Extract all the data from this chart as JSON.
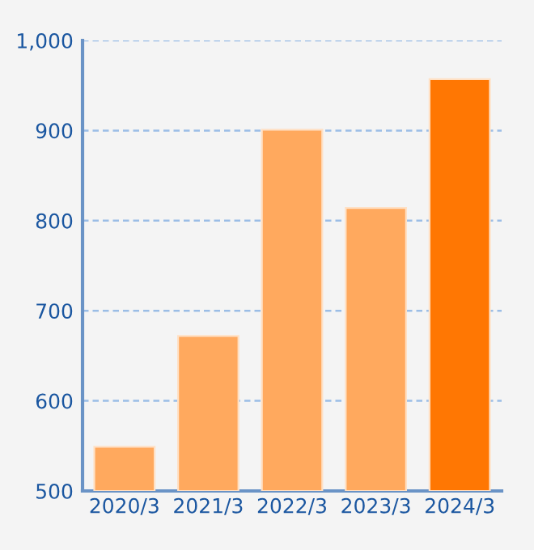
{
  "chart_data": {
    "type": "bar",
    "categories": [
      "2020/3",
      "2021/3",
      "2022/3",
      "2023/3",
      "2024/3"
    ],
    "values": [
      549,
      672,
      901,
      814,
      957
    ],
    "colors": [
      "#ffa95e",
      "#ffa95e",
      "#ffa95e",
      "#ffa95e",
      "#ff7703"
    ],
    "ylim": [
      500,
      1000
    ],
    "yticks": [
      500,
      600,
      700,
      800,
      {
        "value": 900,
        "label": "900"
      },
      {
        "value": 1000,
        "label": "1,000"
      }
    ],
    "grid": "y"
  }
}
